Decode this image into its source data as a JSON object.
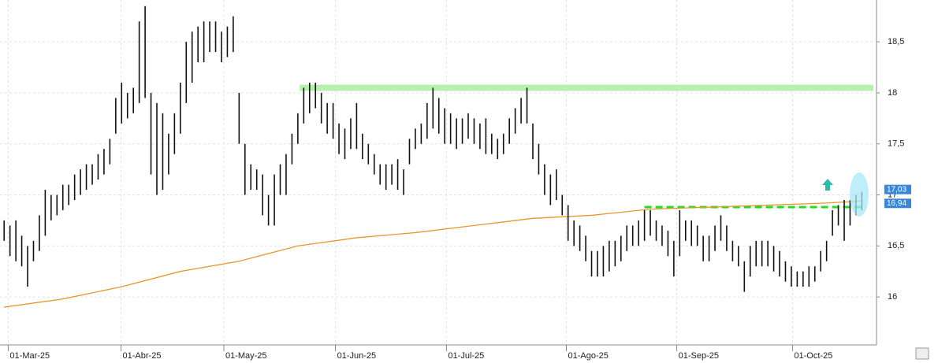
{
  "chart_data": {
    "type": "hilo",
    "high": [
      16.75,
      16.7,
      16.75,
      16.6,
      16.5,
      16.55,
      16.8,
      17.05,
      17.0,
      17.0,
      17.1,
      17.1,
      17.2,
      17.25,
      17.3,
      17.3,
      17.4,
      17.45,
      17.55,
      17.95,
      18.1,
      18.0,
      18.05,
      18.7,
      18.85,
      18.0,
      17.9,
      17.8,
      17.6,
      17.8,
      18.1,
      18.5,
      18.6,
      18.65,
      18.7,
      18.7,
      18.7,
      18.6,
      18.65,
      18.75,
      18.0,
      17.5,
      17.3,
      17.25,
      17.2,
      17.0,
      17.2,
      17.3,
      17.4,
      17.6,
      17.8,
      18.05,
      18.1,
      18.1,
      18.0,
      17.9,
      17.9,
      17.7,
      17.65,
      17.75,
      17.9,
      17.6,
      17.5,
      17.4,
      17.3,
      17.3,
      17.3,
      17.35,
      17.25,
      17.55,
      17.65,
      17.7,
      17.9,
      18.05,
      17.95,
      17.85,
      17.8,
      17.75,
      17.75,
      17.8,
      17.75,
      17.7,
      17.75,
      17.6,
      17.55,
      17.6,
      17.75,
      17.85,
      17.95,
      18.05,
      17.7,
      17.5,
      17.3,
      17.2,
      17.25,
      17.0,
      16.9,
      16.75,
      16.7,
      16.6,
      16.45,
      16.45,
      16.5,
      16.55,
      16.55,
      16.6,
      16.7,
      16.7,
      16.75,
      16.85,
      16.85,
      16.75,
      16.7,
      16.65,
      16.55,
      16.85,
      16.75,
      16.75,
      16.7,
      16.6,
      16.6,
      16.7,
      16.8,
      16.7,
      16.55,
      16.5,
      16.35,
      16.5,
      16.55,
      16.55,
      16.55,
      16.5,
      16.45,
      16.35,
      16.3,
      16.25,
      16.25,
      16.3,
      16.3,
      16.45,
      16.55,
      16.85,
      16.9,
      16.95,
      16.95,
      17.0,
      17.03
    ],
    "low": [
      16.55,
      16.4,
      16.35,
      16.3,
      16.1,
      16.35,
      16.45,
      16.6,
      16.75,
      16.8,
      16.85,
      16.9,
      16.95,
      17.0,
      17.05,
      17.1,
      17.15,
      17.2,
      17.3,
      17.6,
      17.7,
      17.75,
      17.8,
      17.9,
      17.95,
      17.2,
      17.0,
      17.05,
      17.2,
      17.4,
      17.6,
      17.9,
      18.1,
      18.3,
      18.3,
      18.4,
      18.4,
      18.3,
      18.35,
      18.4,
      17.5,
      17.0,
      17.05,
      17.05,
      16.8,
      16.7,
      16.7,
      17.0,
      17.0,
      17.3,
      17.5,
      17.7,
      17.8,
      17.85,
      17.7,
      17.6,
      17.55,
      17.4,
      17.35,
      17.45,
      17.45,
      17.35,
      17.3,
      17.2,
      17.1,
      17.05,
      17.1,
      17.05,
      17.0,
      17.3,
      17.45,
      17.5,
      17.55,
      17.65,
      17.6,
      17.5,
      17.5,
      17.45,
      17.5,
      17.55,
      17.5,
      17.45,
      17.4,
      17.4,
      17.35,
      17.4,
      17.5,
      17.6,
      17.7,
      17.7,
      17.35,
      17.2,
      17.0,
      16.9,
      16.95,
      16.8,
      16.55,
      16.5,
      16.45,
      16.35,
      16.2,
      16.2,
      16.2,
      16.25,
      16.3,
      16.35,
      16.45,
      16.5,
      16.5,
      16.55,
      16.6,
      16.55,
      16.5,
      16.4,
      16.2,
      16.4,
      16.55,
      16.5,
      16.5,
      16.35,
      16.35,
      16.45,
      16.55,
      16.45,
      16.35,
      16.3,
      16.05,
      16.2,
      16.3,
      16.3,
      16.3,
      16.25,
      16.2,
      16.15,
      16.1,
      16.1,
      16.1,
      16.1,
      16.15,
      16.25,
      16.35,
      16.6,
      16.7,
      16.55,
      16.7,
      16.8,
      16.85
    ],
    "ma": {
      "x": [
        0,
        10,
        20,
        30,
        40,
        50,
        60,
        70,
        80,
        90,
        100,
        110,
        120,
        130,
        140,
        146
      ],
      "values": [
        15.9,
        15.98,
        16.1,
        16.25,
        16.35,
        16.5,
        16.58,
        16.63,
        16.7,
        16.77,
        16.8,
        16.86,
        16.88,
        16.9,
        16.92,
        16.94
      ],
      "color": "#e8962a"
    },
    "levels": [
      {
        "value": 18.05,
        "color": "#b8f0b0"
      },
      {
        "value": 16.88,
        "color": "#22dd22"
      }
    ],
    "price_labels": [
      {
        "value": 17.03,
        "label": "17,03"
      },
      {
        "value": 16.94,
        "label": "16,94"
      }
    ],
    "xlim": [
      -0.7,
      148.5
    ],
    "xticks": [
      {
        "value": 0.7,
        "label": "01-Mar-25"
      },
      {
        "value": 19.9,
        "label": "01-Abr-25"
      },
      {
        "value": 37.4,
        "label": "01-May-25"
      },
      {
        "value": 56.4,
        "label": "01-Jun-25"
      },
      {
        "value": 75.3,
        "label": "01-Jul-25"
      },
      {
        "value": 95.7,
        "label": "01-Ago-25"
      },
      {
        "value": 114.5,
        "label": "01-Sep-25"
      },
      {
        "value": 134.2,
        "label": "01-Oct-25"
      }
    ],
    "ylim": [
      15.53,
      18.91
    ],
    "yticks": [
      {
        "value": 16,
        "label": "16"
      },
      {
        "value": 16.5,
        "label": "16,5"
      },
      {
        "value": 17,
        "label": "17"
      },
      {
        "value": 17.5,
        "label": "17,5"
      },
      {
        "value": 18,
        "label": "18"
      },
      {
        "value": 18.5,
        "label": "18,5"
      }
    ],
    "color": "#111111",
    "grid": true
  }
}
